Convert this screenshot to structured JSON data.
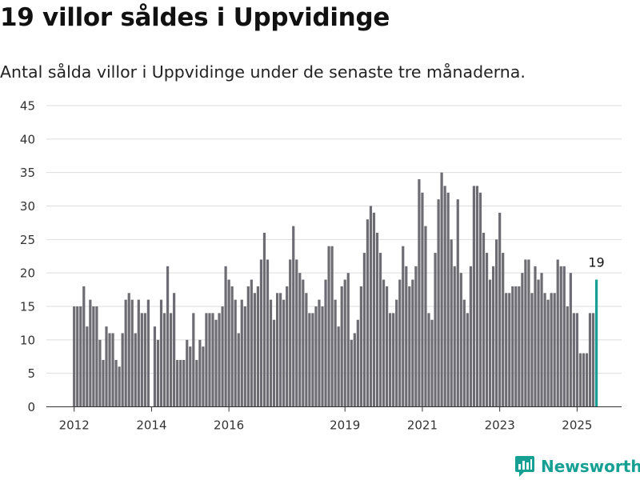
{
  "header": {
    "title": "19 villor såldes i Uppvidinge",
    "subtitle": "Antal sålda villor i Uppvidinge under de senaste tre månaderna."
  },
  "brand": {
    "name": "Newsworthy",
    "logo_icon": "newsworthy-chart-logo-icon"
  },
  "colors": {
    "bar": "#6d6c72",
    "highlight": "#16a093",
    "brand": "#16a093",
    "grid": "#dddddd"
  },
  "chart_data": {
    "type": "bar",
    "title": "",
    "xlabel": "",
    "ylabel": "",
    "ylim": [
      0,
      45
    ],
    "y_ticks": [
      "0",
      "5",
      "10",
      "15",
      "20",
      "25",
      "30",
      "35",
      "40",
      "45"
    ],
    "x_ticks": [
      "2012",
      "2014",
      "2016",
      "2019",
      "2021",
      "2023",
      "2025"
    ],
    "grid": "horizontal",
    "legend": "none",
    "start_month": "2012-01",
    "values": [
      15,
      15,
      15,
      18,
      12,
      16,
      15,
      15,
      10,
      7,
      12,
      11,
      11,
      7,
      6,
      11,
      16,
      17,
      16,
      11,
      16,
      14,
      14,
      16,
      0,
      12,
      10,
      16,
      14,
      21,
      14,
      17,
      7,
      7,
      7,
      10,
      9,
      14,
      7,
      10,
      9,
      14,
      14,
      14,
      13,
      14,
      15,
      21,
      19,
      18,
      16,
      11,
      16,
      15,
      18,
      19,
      17,
      18,
      22,
      26,
      22,
      16,
      13,
      17,
      17,
      16,
      18,
      22,
      27,
      22,
      20,
      19,
      17,
      14,
      14,
      15,
      16,
      15,
      19,
      24,
      24,
      16,
      12,
      18,
      19,
      20,
      10,
      11,
      13,
      18,
      23,
      28,
      30,
      29,
      26,
      23,
      19,
      18,
      14,
      14,
      16,
      19,
      24,
      21,
      18,
      19,
      21,
      34,
      32,
      27,
      14,
      13,
      23,
      31,
      35,
      33,
      32,
      25,
      21,
      31,
      20,
      16,
      14,
      21,
      33,
      33,
      32,
      26,
      23,
      19,
      21,
      25,
      29,
      23,
      17,
      17,
      18,
      18,
      18,
      20,
      22,
      22,
      17,
      21,
      19,
      20,
      17,
      16,
      17,
      17,
      22,
      21,
      21,
      15,
      20,
      14,
      14,
      8,
      8,
      8,
      14,
      14,
      19
    ],
    "highlight_index": 162,
    "annotation": "19"
  }
}
